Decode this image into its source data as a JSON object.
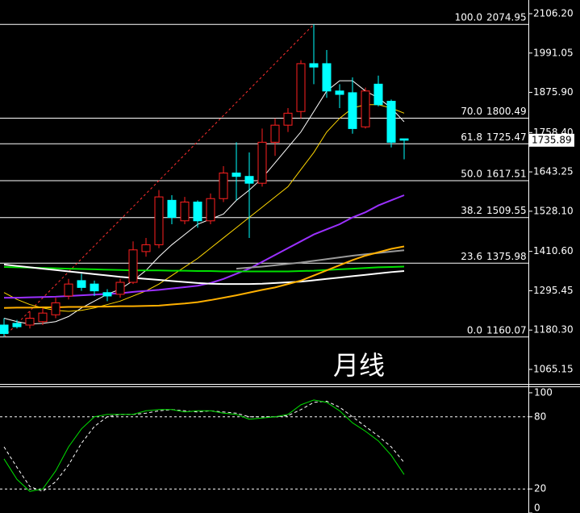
{
  "chart_data": {
    "type": "candlestick",
    "title": "月线",
    "ylim": [
      1022.6,
      2146.3
    ],
    "yticks": [
      {
        "value": 2106.2,
        "label": "2106.20"
      },
      1991.05,
      {
        "value": 1875.9,
        "label": "1875.90"
      },
      {
        "value": 1758.4,
        "label": "1758.40"
      },
      1643.25,
      {
        "value": 1528.1,
        "label": "1528.10"
      },
      {
        "value": 1410.6,
        "label": "1410.60"
      },
      1295.45,
      {
        "value": 1180.3,
        "label": "1180.30"
      },
      1065.15
    ],
    "last_price": 1735.89,
    "up_color": "#ff2020",
    "down_color": "#00ffff",
    "candles": {
      "open": [
        1195,
        1200,
        1195,
        1205,
        1225,
        1280,
        1325,
        1315,
        1290,
        1285,
        1320,
        1410,
        1430,
        1560,
        1500,
        1555,
        1500,
        1565,
        1640,
        1630,
        1610,
        1730,
        1780,
        1820,
        1960,
        1960,
        1880,
        1875,
        1775,
        1900,
        1850,
        1740
      ],
      "high": [
        1215,
        1210,
        1235,
        1245,
        1275,
        1330,
        1345,
        1325,
        1300,
        1330,
        1440,
        1450,
        1590,
        1575,
        1570,
        1560,
        1580,
        1660,
        1730,
        1700,
        1770,
        1800,
        1830,
        1970,
        2075,
        2000,
        1900,
        1920,
        1890,
        1925,
        1855,
        1740
      ],
      "low": [
        1160,
        1185,
        1185,
        1195,
        1215,
        1270,
        1295,
        1280,
        1265,
        1275,
        1315,
        1395,
        1420,
        1490,
        1490,
        1480,
        1490,
        1555,
        1560,
        1450,
        1600,
        1690,
        1760,
        1800,
        1900,
        1860,
        1830,
        1755,
        1770,
        1835,
        1715,
        1680
      ],
      "close": [
        1170,
        1190,
        1215,
        1230,
        1260,
        1315,
        1305,
        1295,
        1280,
        1320,
        1415,
        1430,
        1570,
        1510,
        1555,
        1500,
        1565,
        1640,
        1630,
        1610,
        1730,
        1780,
        1815,
        1960,
        1950,
        1880,
        1870,
        1770,
        1880,
        1840,
        1730,
        1736
      ]
    },
    "lines": [
      {
        "color": "#ffffff",
        "width": 1,
        "values": [
          1215,
          1205,
          1198,
          1200,
          1205,
          1220,
          1245,
          1265,
          1285,
          1300,
          1325,
          1355,
          1395,
          1430,
          1460,
          1490,
          1505,
          1520,
          1560,
          1590,
          1625,
          1670,
          1715,
          1760,
          1820,
          1880,
          1910,
          1910,
          1880,
          1860,
          1830,
          1790
        ]
      },
      {
        "color": "#ffd700",
        "width": 1,
        "values": [
          1290,
          1270,
          1255,
          1245,
          1238,
          1235,
          1238,
          1245,
          1255,
          1265,
          1280,
          1295,
          1315,
          1340,
          1365,
          1390,
          1420,
          1450,
          1480,
          1510,
          1540,
          1570,
          1600,
          1650,
          1700,
          1760,
          1800,
          1830,
          1840,
          1840,
          1830,
          1815
        ]
      },
      {
        "color": "#9b30ff",
        "width": 2,
        "values": [
          1275,
          1275,
          1276,
          1277,
          1278,
          1280,
          1282,
          1284,
          1286,
          1288,
          1292,
          1295,
          1298,
          1302,
          1306,
          1310,
          1318,
          1330,
          1345,
          1360,
          1380,
          1400,
          1420,
          1440,
          1460,
          1475,
          1490,
          1510,
          1525,
          1545,
          1560,
          1575
        ]
      },
      {
        "color": "#999999",
        "width": 2,
        "values": [
          null,
          null,
          null,
          null,
          null,
          null,
          null,
          null,
          null,
          null,
          null,
          null,
          null,
          null,
          null,
          null,
          null,
          null,
          1360,
          1363,
          1366,
          1370,
          1374,
          1378,
          1383,
          1388,
          1393,
          1398,
          1402,
          1406,
          1410,
          1414
        ]
      },
      {
        "color": "#00e000",
        "width": 2,
        "values": [
          1365,
          1364,
          1363,
          1362,
          1361,
          1360,
          1359,
          1358,
          1357,
          1356,
          1355,
          1355,
          1355,
          1354,
          1354,
          1353,
          1353,
          1352,
          1352,
          1352,
          1352,
          1352,
          1352,
          1353,
          1354,
          1356,
          1358,
          1360,
          1362,
          1364,
          1365,
          1366
        ]
      },
      {
        "color": "#ffffff",
        "width": 2,
        "values": [
          1372,
          1368,
          1364,
          1360,
          1356,
          1352,
          1348,
          1344,
          1340,
          1336,
          1333,
          1330,
          1327,
          1324,
          1321,
          1318,
          1316,
          1315,
          1315,
          1315,
          1316,
          1318,
          1320,
          1322,
          1326,
          1330,
          1334,
          1338,
          1342,
          1346,
          1350,
          1353
        ]
      },
      {
        "color": "#ffb000",
        "width": 2,
        "values": [
          1245,
          1246,
          1246,
          1247,
          1247,
          1248,
          1248,
          1249,
          1249,
          1250,
          1250,
          1251,
          1252,
          1255,
          1258,
          1262,
          1268,
          1275,
          1282,
          1290,
          1298,
          1305,
          1315,
          1325,
          1340,
          1355,
          1370,
          1385,
          1398,
          1408,
          1418,
          1425
        ]
      }
    ],
    "fib": {
      "levels": [
        {
          "value": 100,
          "label": "100.0"
        },
        {
          "value": 70,
          "label": "70.0"
        },
        61.8,
        {
          "value": 50,
          "label": "50.0"
        },
        38.2,
        23.6,
        {
          "value": 0,
          "label": "0.0"
        }
      ],
      "prices": [
        2074.95,
        1800.49,
        1725.47,
        1617.51,
        1509.55,
        1375.98,
        1160.07
      ],
      "low_index": 0,
      "high_index": 24
    },
    "oscillator": {
      "ylim": [
        0,
        106
      ],
      "yticks": [
        100,
        80,
        20,
        0
      ],
      "grid_levels": [
        80,
        20
      ],
      "k": {
        "color": "#00e000",
        "values": [
          45,
          28,
          18,
          20,
          35,
          55,
          70,
          80,
          82,
          82,
          82,
          85,
          86,
          86,
          84,
          85,
          85,
          83,
          82,
          78,
          79,
          80,
          82,
          90,
          94,
          92,
          85,
          75,
          68,
          60,
          48,
          32
        ]
      },
      "d": {
        "color": "#ffffff",
        "values": [
          55,
          38,
          22,
          18,
          26,
          40,
          58,
          72,
          80,
          82,
          82,
          83,
          85,
          86,
          85,
          84,
          85,
          84,
          83,
          80,
          80,
          80,
          81,
          86,
          92,
          93,
          88,
          80,
          72,
          64,
          55,
          42
        ]
      }
    }
  }
}
